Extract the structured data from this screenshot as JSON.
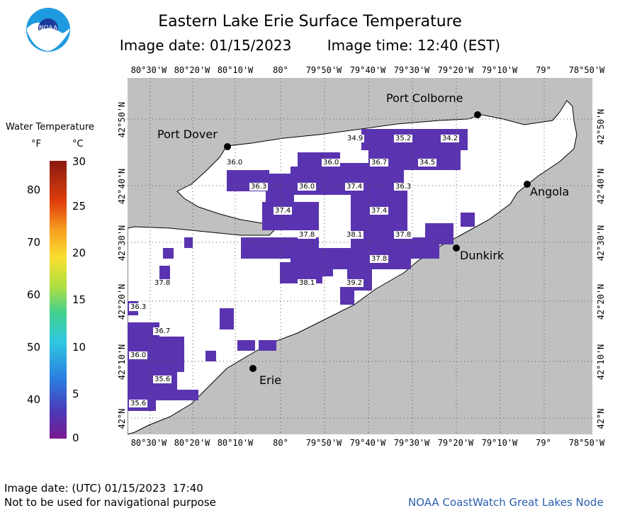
{
  "header": {
    "title": "Eastern Lake Erie Surface Temperature",
    "image_date": "Image date: 01/15/2023",
    "image_time": "Image time: 12:40 (EST)"
  },
  "axes": {
    "lon_ticks": [
      "80°30'W",
      "80°20'W",
      "80°10'W",
      "80°",
      "79°50'W",
      "79°40'W",
      "79°30'W",
      "79°20'W",
      "79°10'W",
      "79°",
      "78°50'W"
    ],
    "lat_ticks": [
      "42°50'N",
      "42°40'N",
      "42°30'N",
      "42°20'N",
      "42°10'N",
      "42°N"
    ]
  },
  "legend": {
    "title": "Water Temperature",
    "unit_f": "°F",
    "unit_c": "°C",
    "f_ticks": [
      "80",
      "70",
      "60",
      "50",
      "40"
    ],
    "c_ticks": [
      "30",
      "25",
      "20",
      "15",
      "10",
      "5",
      "0"
    ]
  },
  "cities": [
    {
      "name": "Port Colborne"
    },
    {
      "name": "Port Dover"
    },
    {
      "name": "Angola"
    },
    {
      "name": "Dunkirk"
    },
    {
      "name": "Erie"
    }
  ],
  "temperature_labels": [
    "34.9",
    "35.2",
    "34.2",
    "36.0",
    "36.0",
    "36.7",
    "34.5",
    "36.3",
    "36.0",
    "37.4",
    "36.3",
    "37.4",
    "37.4",
    "37.8",
    "38.1",
    "37.8",
    "37.8",
    "38.1",
    "39.2",
    "37.8",
    "36.3",
    "36.7",
    "36.0",
    "35.6",
    "35.6"
  ],
  "footer": {
    "utc_date": "Image date: (UTC) 01/15/2023  17:40",
    "disclaimer": "Not to be used for navigational purpose",
    "credit": "NOAA CoastWatch Great Lakes Node"
  },
  "colors": {
    "land": "#c0c0c0",
    "water_no_data": "#ffffff",
    "water_cold": "#5a34b0",
    "credit_text": "#2a5fb0"
  },
  "logo_text": "NOAA"
}
